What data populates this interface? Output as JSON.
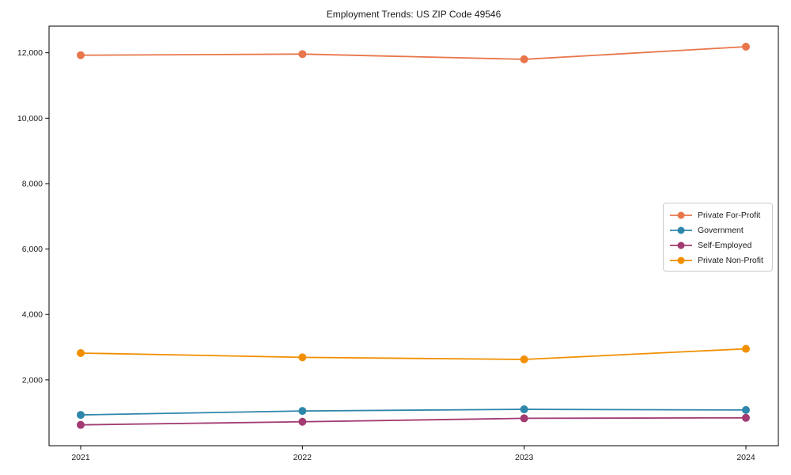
{
  "chart_data": {
    "type": "line",
    "title": "Employment Trends: US ZIP Code 49546",
    "categories": [
      "2021",
      "2022",
      "2023",
      "2024"
    ],
    "series": [
      {
        "name": "Private For-Profit",
        "color": "#E8764B",
        "values": [
          11925,
          11960,
          11800,
          12185
        ]
      },
      {
        "name": "Government",
        "color": "#2E86AB",
        "values": [
          930,
          1050,
          1100,
          1080
        ]
      },
      {
        "name": "Self-Employed",
        "color": "#A23B72",
        "values": [
          625,
          720,
          825,
          840
        ]
      },
      {
        "name": "Private Non-Profit",
        "color": "#F18F01",
        "values": [
          2820,
          2690,
          2625,
          2950
        ]
      }
    ],
    "xlabel": "",
    "ylabel": "",
    "y_ticks": [
      2000,
      4000,
      6000,
      8000,
      10000,
      12000
    ],
    "y_tick_labels": [
      "2,000",
      "4,000",
      "6,000",
      "8,000",
      "10,000",
      "12,000"
    ],
    "ylim": [
      0,
      12800
    ],
    "grid": false,
    "legend_position": "inside-right-middle",
    "marker": "circle",
    "axis_color": "#000000",
    "text_color": "#1a1a1a"
  }
}
